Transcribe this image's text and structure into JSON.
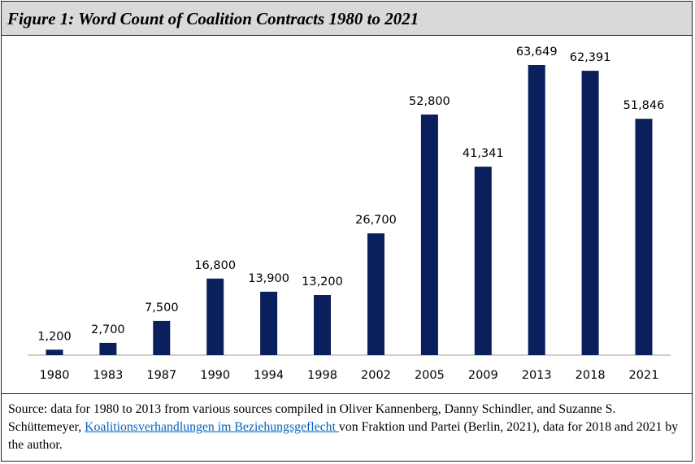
{
  "figure": {
    "title": "Figure 1: Word Count of Coalition Contracts 1980 to 2021"
  },
  "source": {
    "prefix": "Source: data for 1980 to 2013 from various sources compiled in Oliver Kannenberg, Danny Schindler, and Suzanne S. Schüttemeyer, ",
    "link_text": "Koalitionsverhandlungen im Beziehungsgeflecht ",
    "suffix": "von Fraktion und Partei (Berlin, 2021), data for 2018 and 2021 by the author."
  },
  "chart_data": {
    "type": "bar",
    "title": "Figure 1: Word Count of Coalition Contracts 1980 to 2021",
    "xlabel": "",
    "ylabel": "",
    "categories": [
      "1980",
      "1983",
      "1987",
      "1990",
      "1994",
      "1998",
      "2002",
      "2005",
      "2009",
      "2013",
      "2018",
      "2021"
    ],
    "values": [
      1200,
      2700,
      7500,
      16800,
      13900,
      13200,
      26700,
      52800,
      41341,
      63649,
      62391,
      51846
    ],
    "value_labels": [
      "1,200",
      "2,700",
      "7,500",
      "16,800",
      "13,900",
      "13,200",
      "26,700",
      "52,800",
      "41,341",
      "63,649",
      "62,391",
      "51,846"
    ],
    "ylim": [
      0,
      63649
    ],
    "bar_color": "#0b1f5c",
    "axis_color": "#bfbfbf",
    "grid": false,
    "legend": "none"
  }
}
